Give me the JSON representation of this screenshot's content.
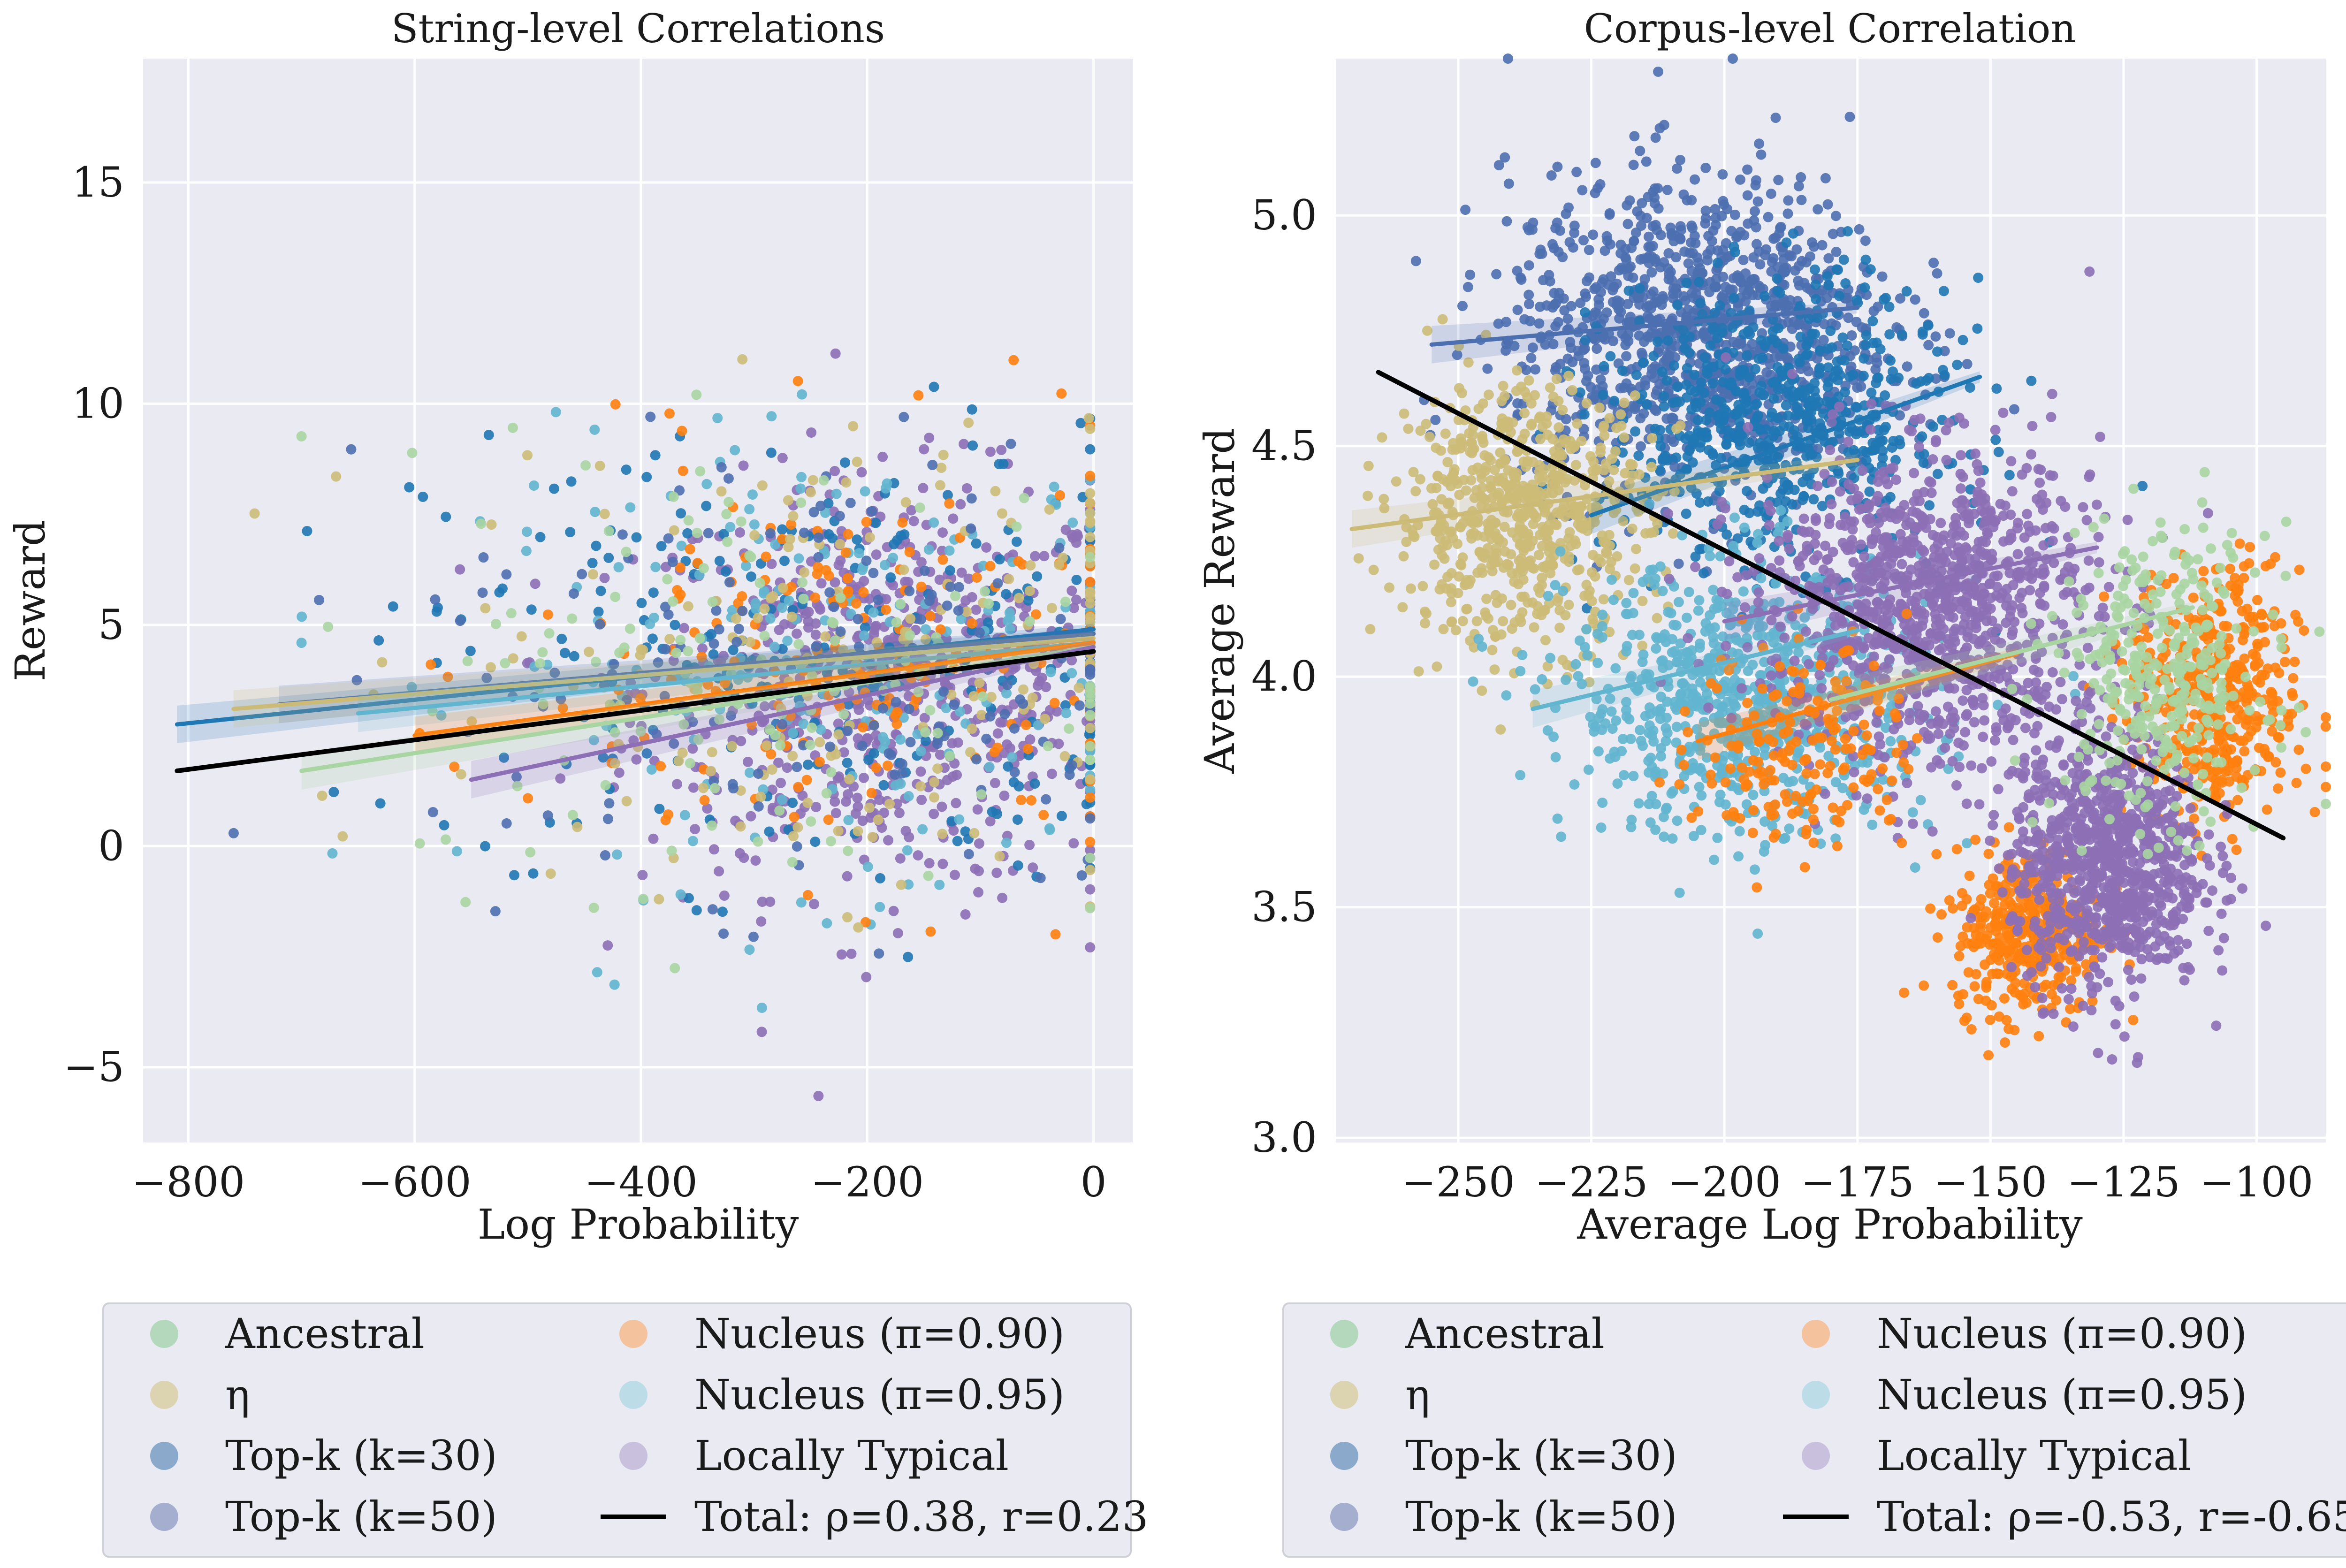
{
  "chart_data": [
    {
      "type": "scatter",
      "title": "String-level Correlations",
      "xlabel": "Log Probability",
      "ylabel": "Reward",
      "xlim": [
        -840,
        35
      ],
      "ylim": [
        -6.7,
        17.8
      ],
      "xticks": [
        -800,
        -600,
        -400,
        -200,
        0
      ],
      "yticks": [
        -5,
        0,
        5,
        10,
        15
      ],
      "xtick_labels": [
        "−800",
        "−600",
        "−400",
        "−200",
        "0"
      ],
      "ytick_labels": [
        "−5",
        "0",
        "5",
        "10",
        "15"
      ],
      "grid": true,
      "legend_position": "below",
      "point_clouds": [
        {
          "series": "Locally Typical",
          "center": [
            -180,
            3.6
          ],
          "spread": [
            110,
            2.3
          ],
          "x_range": [
            -560,
            -3
          ],
          "n": 700
        },
        {
          "series": "Top-k (k=30)",
          "center": [
            -250,
            4.3
          ],
          "spread": [
            170,
            2.6
          ],
          "x_range": [
            -800,
            -3
          ],
          "n": 260
        },
        {
          "series": "Nucleus (π=0.95)",
          "center": [
            -220,
            4.2
          ],
          "spread": [
            160,
            2.5
          ],
          "x_range": [
            -700,
            -3
          ],
          "n": 220
        },
        {
          "series": "Nucleus (π=0.90)",
          "center": [
            -200,
            4.0
          ],
          "spread": [
            150,
            2.4
          ],
          "x_range": [
            -650,
            -3
          ],
          "n": 200
        },
        {
          "series": "η",
          "center": [
            -230,
            4.2
          ],
          "spread": [
            170,
            2.6
          ],
          "x_range": [
            -760,
            -3
          ],
          "n": 200
        },
        {
          "series": "Top-k (k=50)",
          "center": [
            -240,
            4.2
          ],
          "spread": [
            170,
            2.6
          ],
          "x_range": [
            -760,
            -3
          ],
          "n": 180
        },
        {
          "series": "Ancestral",
          "center": [
            -260,
            4.0
          ],
          "spread": [
            180,
            2.5
          ],
          "x_range": [
            -700,
            -3
          ],
          "n": 150
        }
      ],
      "regression_lines": [
        {
          "series": "Top-k (k=30)",
          "x": [
            -810,
            0
          ],
          "y": [
            2.75,
            4.9
          ]
        },
        {
          "series": "Top-k (k=50)",
          "x": [
            -720,
            0
          ],
          "y": [
            3.2,
            4.8
          ]
        },
        {
          "series": "η",
          "x": [
            -760,
            0
          ],
          "y": [
            3.1,
            4.7
          ]
        },
        {
          "series": "Nucleus (π=0.95)",
          "x": [
            -650,
            0
          ],
          "y": [
            3.0,
            4.6
          ]
        },
        {
          "series": "Nucleus (π=0.90)",
          "x": [
            -600,
            0
          ],
          "y": [
            2.5,
            4.6
          ]
        },
        {
          "series": "Ancestral",
          "x": [
            -700,
            0
          ],
          "y": [
            1.7,
            4.5
          ]
        },
        {
          "series": "Locally Typical",
          "x": [
            -550,
            0
          ],
          "y": [
            1.5,
            4.5
          ]
        },
        {
          "series": "Total",
          "x": [
            -810,
            0
          ],
          "y": [
            1.7,
            4.4
          ]
        }
      ],
      "legend": [
        "Ancestral",
        "η",
        "Top-k (k=30)",
        "Top-k (k=50)",
        "Nucleus (π=0.90)",
        "Nucleus (π=0.95)",
        "Locally Typical",
        "Total: ρ=0.38, r=0.23"
      ]
    },
    {
      "type": "scatter",
      "title": "Corpus-level Correlation",
      "xlabel": "Average Log Probability",
      "ylabel": "Average Reward",
      "xlim": [
        -273,
        -87
      ],
      "ylim": [
        2.99,
        5.34
      ],
      "xticks": [
        -250,
        -225,
        -200,
        -175,
        -150,
        -125,
        -100
      ],
      "yticks": [
        3.0,
        3.5,
        4.0,
        4.5,
        5.0
      ],
      "xtick_labels": [
        "−250",
        "−225",
        "−200",
        "−175",
        "−150",
        "−125",
        "−100"
      ],
      "ytick_labels": [
        "3.0",
        "3.5",
        "4.0",
        "4.5",
        "5.0"
      ],
      "grid": true,
      "legend_position": "below",
      "point_clouds": [
        {
          "series": "Top-k (k=50)",
          "center": [
            -205,
            4.75
          ],
          "spread": [
            18,
            0.17
          ],
          "n": 1100
        },
        {
          "series": "Top-k (k=30)",
          "center": [
            -190,
            4.55
          ],
          "spread": [
            16,
            0.15
          ],
          "n": 650
        },
        {
          "series": "η",
          "center": [
            -238,
            4.35
          ],
          "spread": [
            12,
            0.14
          ],
          "n": 650
        },
        {
          "series": "Nucleus (π=0.95)",
          "center": [
            -195,
            3.95
          ],
          "spread": [
            17,
            0.15
          ],
          "n": 800
        },
        {
          "series": "Locally Typical",
          "center": [
            -162,
            4.15
          ],
          "spread": [
            16,
            0.17
          ],
          "n": 1100
        },
        {
          "series": "Nucleus (π=0.90)",
          "center": [
            -185,
            3.85
          ],
          "spread": [
            10,
            0.12
          ],
          "n": 180
        },
        {
          "series": "Nucleus (π=0.90)",
          "center": [
            -108,
            3.95
          ],
          "spread": [
            8,
            0.14
          ],
          "n": 450
        },
        {
          "series": "Nucleus (π=0.90)",
          "center": [
            -143,
            3.45
          ],
          "spread": [
            7,
            0.09
          ],
          "n": 380
        },
        {
          "series": "Locally Typical",
          "center": [
            -128,
            3.6
          ],
          "spread": [
            9,
            0.14
          ],
          "n": 900
        },
        {
          "series": "Ancestral",
          "center": [
            -118,
            4.0
          ],
          "spread": [
            10,
            0.16
          ],
          "n": 350
        }
      ],
      "regression_lines": [
        {
          "series": "Top-k (k=50)",
          "x": [
            -255,
            -175
          ],
          "y": [
            4.72,
            4.8
          ]
        },
        {
          "series": "Top-k (k=30)",
          "x": [
            -225,
            -152
          ],
          "y": [
            4.35,
            4.65
          ]
        },
        {
          "series": "η",
          "x": [
            -270,
            -175
          ],
          "y": [
            4.32,
            4.47
          ]
        },
        {
          "series": "Nucleus (π=0.95)",
          "x": [
            -236,
            -175
          ],
          "y": [
            3.93,
            4.1
          ]
        },
        {
          "series": "Locally Typical",
          "x": [
            -200,
            -130
          ],
          "y": [
            4.12,
            4.28
          ]
        },
        {
          "series": "Nucleus (π=0.90)",
          "x": [
            -205,
            -145
          ],
          "y": [
            3.86,
            4.05
          ]
        },
        {
          "series": "Ancestral",
          "x": [
            -180,
            -112
          ],
          "y": [
            3.95,
            4.15
          ]
        },
        {
          "series": "Total",
          "x": [
            -265,
            -95
          ],
          "y": [
            4.66,
            3.65
          ]
        }
      ],
      "legend": [
        "Ancestral",
        "η",
        "Top-k (k=30)",
        "Top-k (k=50)",
        "Nucleus (π=0.90)",
        "Nucleus (π=0.95)",
        "Locally Typical",
        "Total: ρ=-0.53, r=-0.65"
      ]
    }
  ],
  "series_colors": {
    "Ancestral": "#a8d5a2",
    "η": "#ccbb77",
    "Top-k (k=30)": "#1f77b4",
    "Top-k (k=50)": "#4c6fb0",
    "Nucleus (π=0.90)": "#ff7f0e",
    "Nucleus (π=0.95)": "#62b5cf",
    "Locally Typical": "#8c6fb5",
    "Total": "#000000"
  },
  "legend_marker_colors": {
    "Ancestral": "#b4d8bc",
    "η": "#dcd3b1",
    "Top-k (k=30)": "#8aa9cb",
    "Top-k (k=50)": "#a5aecf",
    "Nucleus (π=0.90)": "#f4c39d",
    "Nucleus (π=0.95)": "#bcdce8",
    "Locally Typical": "#c8c0dc"
  },
  "plot_background": "#eaeaf2",
  "grid_color": "#ffffff"
}
